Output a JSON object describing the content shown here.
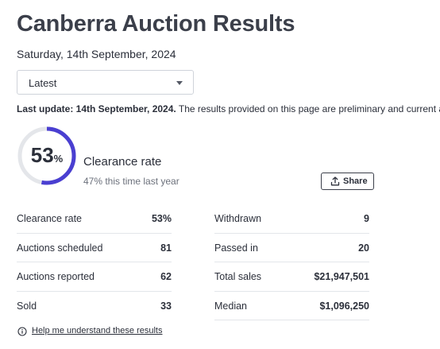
{
  "page": {
    "title": "Canberra Auction Results",
    "date": "Saturday, 14th September, 2024"
  },
  "selector": {
    "selected": "Latest"
  },
  "update": {
    "bold": "Last update: 14th September, 2024.",
    "text": " The results provided on this page are preliminary and current at the time of publishing."
  },
  "clearance": {
    "value": "53",
    "sign": "%",
    "fraction": 0.53,
    "label": "Clearance rate",
    "last_year": "47% this time last year"
  },
  "share": {
    "label": "Share"
  },
  "stats_left": [
    {
      "label": "Clearance rate",
      "value": "53%"
    },
    {
      "label": "Auctions scheduled",
      "value": "81"
    },
    {
      "label": "Auctions reported",
      "value": "62"
    },
    {
      "label": "Sold",
      "value": "33"
    }
  ],
  "stats_right": [
    {
      "label": "Withdrawn",
      "value": "9"
    },
    {
      "label": "Passed in",
      "value": "20"
    },
    {
      "label": "Total sales",
      "value": "$21,947,501"
    },
    {
      "label": "Median",
      "value": "$1,096,250"
    }
  ],
  "help": {
    "label": "Help me understand these results"
  },
  "colors": {
    "gauge_fill": "#4a3fd1",
    "gauge_track": "#e4e6ea",
    "text": "#2b2f3a"
  },
  "icons": {
    "dropdown": "chevron-down-icon",
    "share": "share-upload-icon",
    "help": "info-icon"
  }
}
